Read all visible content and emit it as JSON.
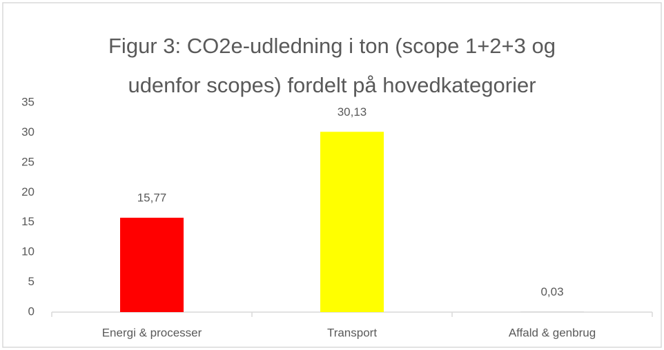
{
  "chart_data": {
    "type": "bar",
    "title": "Figur 3: CO2e-udledning i ton (scope 1+2+3 og udenfor scopes) fordelt på hovedkategorier",
    "categories": [
      "Energi & processer",
      "Transport",
      "Affald & genbrug"
    ],
    "values": [
      15.77,
      30.13,
      0.03
    ],
    "value_labels": [
      "15,77",
      "30,13",
      "0,03"
    ],
    "colors": [
      "#ff0000",
      "#ffff00",
      "#a5a5a5"
    ],
    "ylim": [
      0,
      35
    ],
    "yticks": [
      0,
      5,
      10,
      15,
      20,
      25,
      30,
      35
    ],
    "grid": false
  }
}
